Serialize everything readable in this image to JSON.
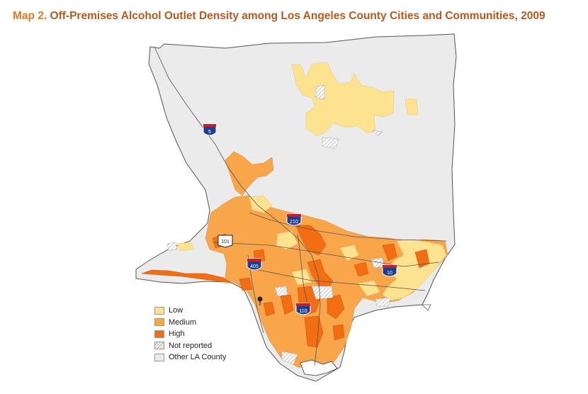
{
  "title": {
    "lead": "Map 2.",
    "text": "Off-Premises Alcohol Outlet Density among Los Angeles County Cities and Communities, 2009"
  },
  "shields": [
    {
      "label": "5",
      "kind": "interstate"
    },
    {
      "label": "210",
      "kind": "interstate"
    },
    {
      "label": "101",
      "kind": "us"
    },
    {
      "label": "405",
      "kind": "interstate"
    },
    {
      "label": "10",
      "kind": "interstate"
    },
    {
      "label": "110",
      "kind": "interstate"
    }
  ],
  "legend": [
    {
      "label": "Low",
      "color": "#fde28f"
    },
    {
      "label": "Medium",
      "color": "#f9a64a"
    },
    {
      "label": "High",
      "color": "#f36d12"
    },
    {
      "label": "Not reported",
      "color": "hatched"
    },
    {
      "label": "Other LA County",
      "color": "#ebebeb"
    }
  ]
}
